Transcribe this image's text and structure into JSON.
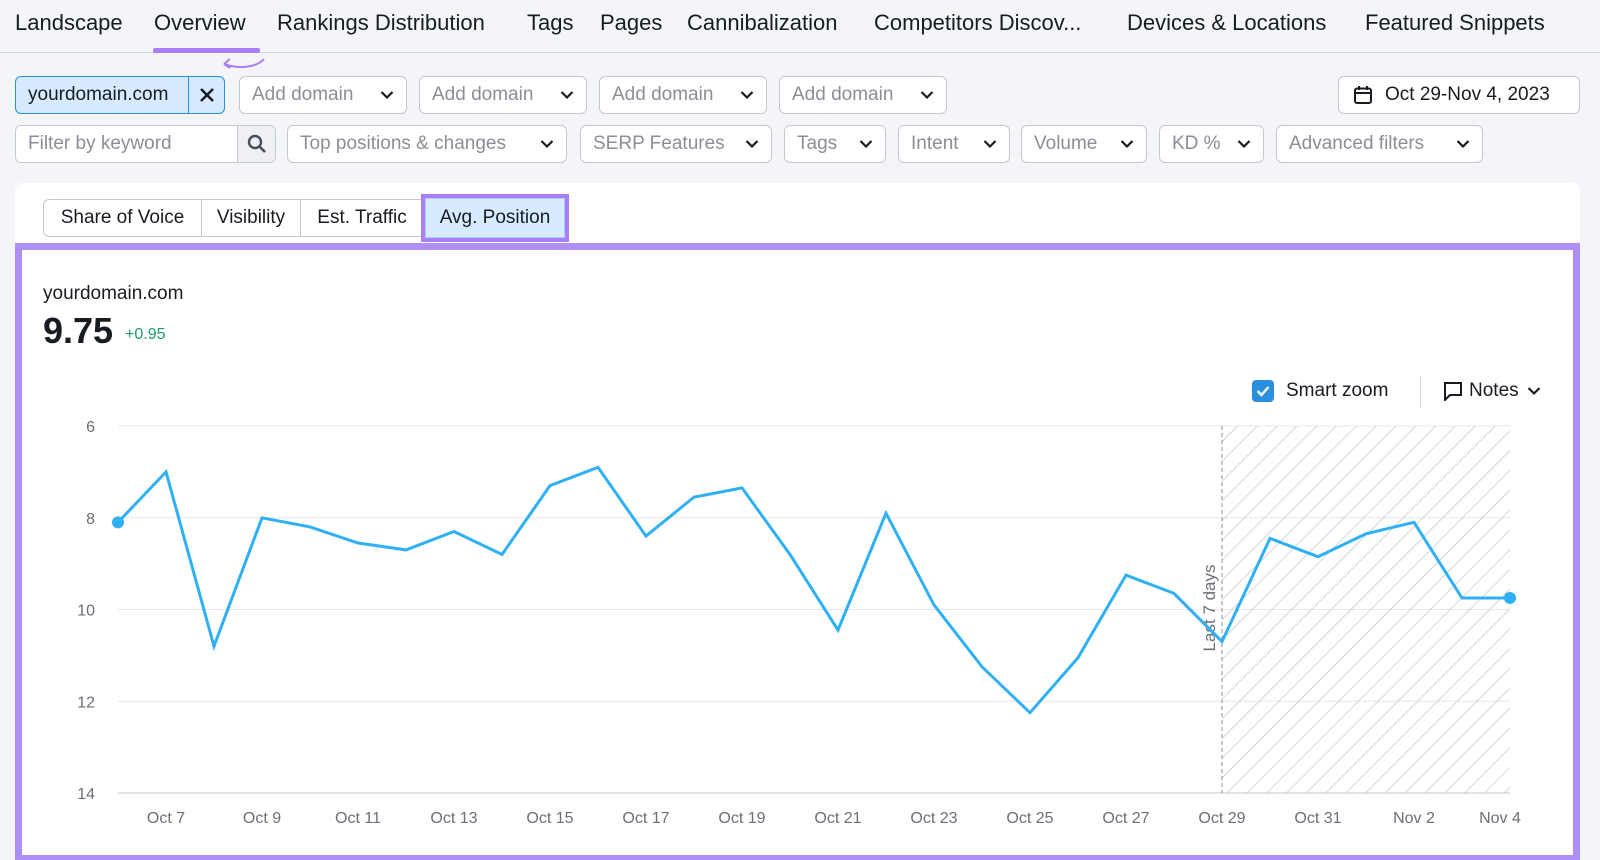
{
  "nav": {
    "tabs": [
      {
        "label": "Landscape"
      },
      {
        "label": "Overview",
        "active": true
      },
      {
        "label": "Rankings Distribution"
      },
      {
        "label": "Tags"
      },
      {
        "label": "Pages"
      },
      {
        "label": "Cannibalization"
      },
      {
        "label": "Competitors Discov..."
      },
      {
        "label": "Devices & Locations"
      },
      {
        "label": "Featured Snippets"
      }
    ]
  },
  "domain_bar": {
    "selected_domain": "yourdomain.com",
    "add_domain_placeholder": "Add domain",
    "date_range": "Oct 29-Nov 4, 2023"
  },
  "filters": {
    "keyword_placeholder": "Filter by keyword",
    "dropdowns": [
      {
        "label": "Top positions & changes"
      },
      {
        "label": "SERP Features"
      },
      {
        "label": "Tags"
      },
      {
        "label": "Intent"
      },
      {
        "label": "Volume"
      },
      {
        "label": "KD %"
      },
      {
        "label": "Advanced filters"
      }
    ]
  },
  "metric_tabs": [
    {
      "label": "Share of Voice"
    },
    {
      "label": "Visibility"
    },
    {
      "label": "Est. Traffic"
    },
    {
      "label": "Avg. Position",
      "active": true
    }
  ],
  "summary": {
    "domain": "yourdomain.com",
    "value": "9.75",
    "delta": "+0.95"
  },
  "chart_controls": {
    "smart_zoom_label": "Smart zoom",
    "smart_zoom_checked": true,
    "notes_label": "Notes"
  },
  "colors": {
    "accent": "#a97ef7",
    "line": "#2fb0f5",
    "selected_chip": "#d6ebff",
    "positive": "#199c6a"
  },
  "chart_data": {
    "type": "line",
    "y_inverted": true,
    "ylim": [
      6,
      14
    ],
    "yticks": [
      "6",
      "8",
      "10",
      "12",
      "14"
    ],
    "x_tick_labels": [
      "Oct 7",
      "Oct 9",
      "Oct 11",
      "Oct 13",
      "Oct 15",
      "Oct 17",
      "Oct 19",
      "Oct 21",
      "Oct 23",
      "Oct 25",
      "Oct 27",
      "Oct 29",
      "Oct 31",
      "Nov 2",
      "Nov 4"
    ],
    "highlight_label": "Last 7 days",
    "highlight_start": "Oct 29",
    "highlight_end": "Nov 4",
    "series": [
      {
        "x": [
          "Oct 6",
          "Oct 7",
          "Oct 8",
          "Oct 9",
          "Oct 10",
          "Oct 11",
          "Oct 12",
          "Oct 13",
          "Oct 14",
          "Oct 15",
          "Oct 16",
          "Oct 17",
          "Oct 18",
          "Oct 19",
          "Oct 20",
          "Oct 21",
          "Oct 22",
          "Oct 23",
          "Oct 24",
          "Oct 25",
          "Oct 26",
          "Oct 27",
          "Oct 28",
          "Oct 29",
          "Oct 30",
          "Oct 31",
          "Nov 1",
          "Nov 2",
          "Nov 3",
          "Nov 4"
        ],
        "values": [
          8.1,
          7.0,
          10.8,
          8.0,
          8.2,
          8.55,
          8.7,
          8.3,
          8.8,
          7.3,
          6.9,
          8.4,
          7.55,
          7.35,
          8.8,
          10.45,
          7.9,
          9.9,
          11.25,
          12.25,
          11.05,
          9.25,
          9.65,
          10.7,
          8.45,
          8.85,
          8.35,
          8.1,
          9.75,
          9.75
        ]
      }
    ]
  }
}
